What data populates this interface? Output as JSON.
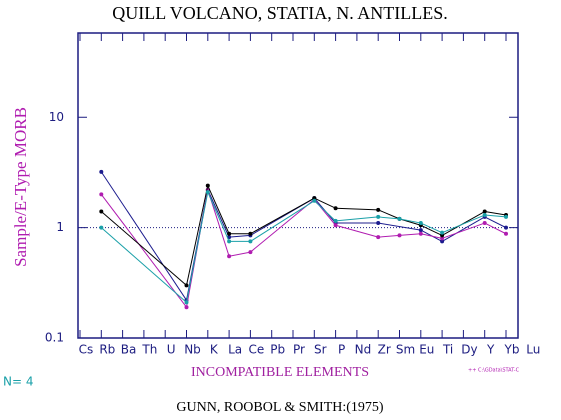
{
  "chart_data": {
    "type": "line",
    "title": "QUILL VOLCANO, STATIA, N. ANTILLES.",
    "y_label": "Sample/E-Type MORB",
    "x_label": "INCOMPATIBLE ELEMENTS",
    "n_text": "N= 4",
    "source": "GUNN, ROOBOL & SMITH:(1975)",
    "file_note": "++ C:\\GData\\STAT-C",
    "log_scale": true,
    "reference_line": 1,
    "categories": [
      "Cs",
      "Rb",
      "Ba",
      "Th",
      "U",
      "Nb",
      "K",
      "La",
      "Ce",
      "Pb",
      "Pr",
      "Sr",
      "P",
      "Nd",
      "Zr",
      "Sm",
      "Eu",
      "Ti",
      "Dy",
      "Y",
      "Yb",
      "Lu"
    ],
    "ylim": [
      0.1,
      58
    ],
    "yticks": [
      0.1,
      1,
      10
    ],
    "series": [
      {
        "name": "navy",
        "color": "#1c1c8e",
        "values": [
          null,
          3.2,
          null,
          null,
          null,
          0.22,
          2.2,
          0.82,
          0.85,
          null,
          null,
          1.85,
          1.1,
          null,
          1.1,
          null,
          0.95,
          0.75,
          null,
          1.25,
          1.0,
          null
        ]
      },
      {
        "name": "magenta",
        "color": "#b01cb0",
        "values": [
          null,
          2.0,
          null,
          null,
          null,
          0.19,
          2.2,
          0.55,
          0.6,
          null,
          null,
          1.8,
          1.05,
          null,
          0.82,
          0.85,
          0.88,
          0.8,
          null,
          1.1,
          0.88,
          null
        ]
      },
      {
        "name": "black",
        "color": "#000000",
        "values": [
          null,
          1.4,
          null,
          null,
          null,
          0.3,
          2.4,
          0.88,
          0.88,
          null,
          null,
          1.85,
          1.5,
          null,
          1.45,
          1.2,
          1.05,
          0.85,
          null,
          1.4,
          1.3,
          null
        ]
      },
      {
        "name": "cyan",
        "color": "#1aa0a8",
        "values": [
          null,
          1.0,
          null,
          null,
          null,
          0.21,
          2.1,
          0.75,
          0.75,
          null,
          null,
          1.75,
          1.15,
          null,
          1.25,
          1.2,
          1.1,
          0.9,
          null,
          1.3,
          1.25,
          null
        ]
      }
    ]
  }
}
